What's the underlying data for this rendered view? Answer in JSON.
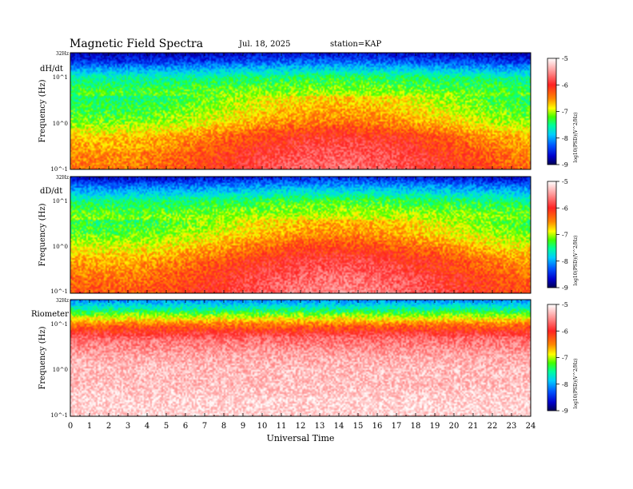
{
  "header": {
    "title": "Magnetic Field Spectra",
    "date": "Jul. 18, 2025",
    "station": "station=KAP"
  },
  "colors": {
    "scale": [
      "#000066",
      "#0000cc",
      "#0055ff",
      "#00ccff",
      "#00ff88",
      "#44ff00",
      "#ffff00",
      "#ff8800",
      "#ff0000",
      "#ff7777",
      "#ffffff"
    ]
  },
  "chart_data": [
    {
      "type": "heatmap",
      "panel_label": "dH/dt",
      "ylabel": "Frequency (Hz)",
      "y_scale": "log",
      "y_ticks": [
        "32Hz",
        "10^1",
        "10^0",
        "10^-1"
      ],
      "x_ticks": [
        "0",
        "1",
        "2",
        "3",
        "4",
        "5",
        "6",
        "7",
        "8",
        "9",
        "10",
        "11",
        "12",
        "13",
        "14",
        "15",
        "16",
        "17",
        "18",
        "19",
        "20",
        "21",
        "22",
        "23",
        "24"
      ],
      "xlim": [
        0,
        24
      ],
      "colorbar": {
        "label": "log10(PSD)(V^2/Hz)",
        "ticks": [
          "-5",
          "-6",
          "-7",
          "-8",
          "-9"
        ],
        "range": [
          -9,
          -5
        ]
      },
      "log_psd_profile": {
        "freq_hz": [
          32,
          20,
          10,
          5,
          2,
          1,
          0.5,
          0.2,
          0.1
        ],
        "log_psd": [
          -8.6,
          -8.2,
          -7.4,
          -7.1,
          -6.9,
          -6.7,
          -6.3,
          -6.1,
          -6.0
        ]
      }
    },
    {
      "type": "heatmap",
      "panel_label": "dD/dt",
      "ylabel": "Frequency (Hz)",
      "y_scale": "log",
      "y_ticks": [
        "32Hz",
        "10^1",
        "10^0",
        "10^-1"
      ],
      "x_ticks": [
        "0",
        "1",
        "2",
        "3",
        "4",
        "5",
        "6",
        "7",
        "8",
        "9",
        "10",
        "11",
        "12",
        "13",
        "14",
        "15",
        "16",
        "17",
        "18",
        "19",
        "20",
        "21",
        "22",
        "23",
        "24"
      ],
      "xlim": [
        0,
        24
      ],
      "colorbar": {
        "label": "log10(PSD)(V^2/Hz)",
        "ticks": [
          "-5",
          "-6",
          "-7",
          "-8",
          "-9"
        ],
        "range": [
          -9,
          -5
        ]
      },
      "log_psd_profile": {
        "freq_hz": [
          32,
          20,
          10,
          5,
          2,
          1,
          0.5,
          0.2,
          0.1
        ],
        "log_psd": [
          -8.5,
          -8.0,
          -7.3,
          -7.0,
          -6.8,
          -6.5,
          -6.2,
          -6.0,
          -5.9
        ]
      }
    },
    {
      "type": "heatmap",
      "panel_label": "Riometer",
      "ylabel": "Frequency (Hz)",
      "y_scale": "log",
      "y_ticks": [
        "32Hz",
        "10^-1",
        "10^0",
        "10^-1"
      ],
      "x_ticks": [
        "0",
        "1",
        "2",
        "3",
        "4",
        "5",
        "6",
        "7",
        "8",
        "9",
        "10",
        "11",
        "12",
        "13",
        "14",
        "15",
        "16",
        "17",
        "18",
        "19",
        "20",
        "21",
        "22",
        "23",
        "24"
      ],
      "xlim": [
        0,
        24
      ],
      "xlabel": "Universal Time",
      "colorbar": {
        "label": "log10(PSD)(V^2/Hz)",
        "ticks": [
          "-5",
          "-6",
          "-7",
          "-8",
          "-9"
        ],
        "range": [
          -9,
          -5
        ]
      },
      "log_psd_profile": {
        "freq_hz": [
          32,
          20,
          10,
          5,
          2,
          1,
          0.5,
          0.2,
          0.1
        ],
        "log_psd": [
          -8.0,
          -7.4,
          -6.4,
          -5.7,
          -5.4,
          -5.3,
          -5.3,
          -5.2,
          -5.2
        ]
      }
    }
  ]
}
